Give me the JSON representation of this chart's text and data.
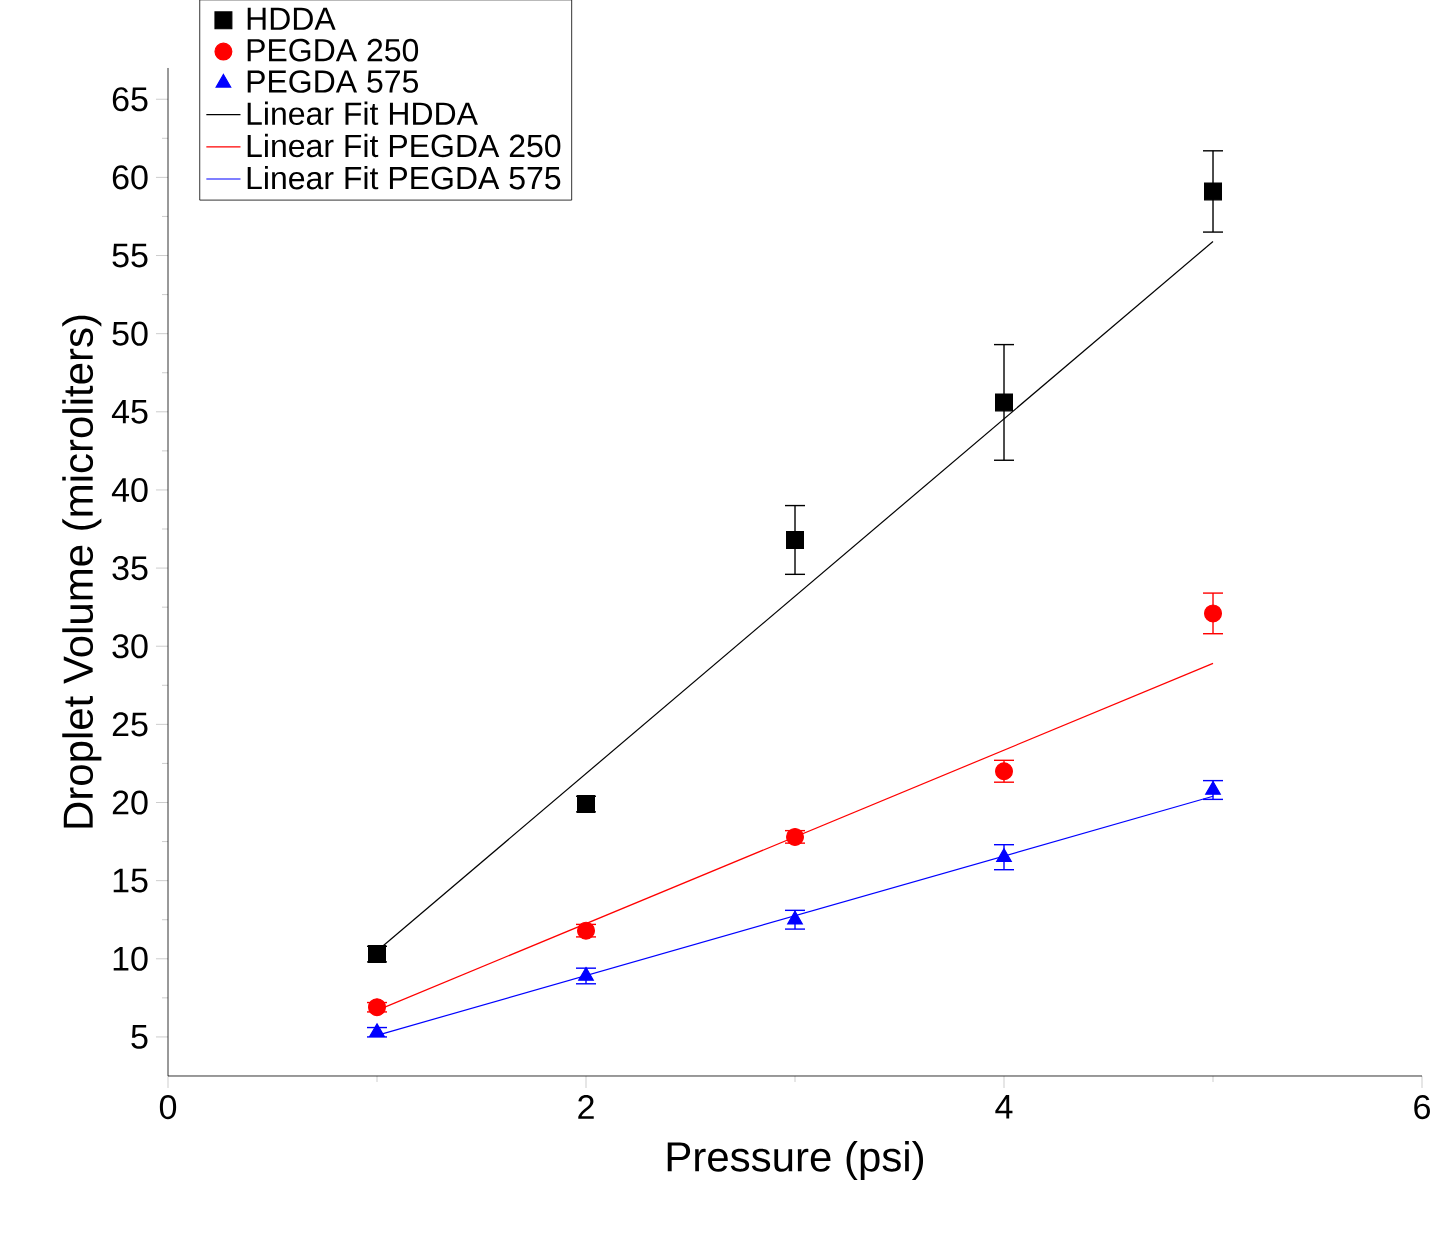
{
  "chart_data": {
    "type": "scatter",
    "xlabel": "Pressure (psi)",
    "ylabel": "Droplet Volume (microliters)",
    "xlim": [
      0,
      6
    ],
    "xticks": [
      0,
      2,
      4,
      6
    ],
    "ylim": [
      2.5,
      67
    ],
    "yticks": [
      5,
      10,
      15,
      20,
      25,
      30,
      35,
      40,
      45,
      50,
      55,
      60,
      65
    ],
    "grid": false,
    "legend": "top left",
    "series": [
      {
        "name": "HDDA",
        "marker": "square",
        "color": "#000000",
        "x": [
          1,
          2,
          3,
          4,
          5
        ],
        "values": [
          10.3,
          19.9,
          36.8,
          45.6,
          59.1
        ],
        "errors": [
          0.5,
          0.5,
          2.2,
          3.7,
          2.6
        ]
      },
      {
        "name": "PEGDA 250",
        "marker": "circle",
        "color": "#ff0000",
        "x": [
          1,
          2,
          3,
          4,
          5
        ],
        "values": [
          6.9,
          11.8,
          17.8,
          22.0,
          32.1
        ],
        "errors": [
          0.3,
          0.4,
          0.4,
          0.7,
          1.3
        ]
      },
      {
        "name": "PEGDA 575",
        "marker": "triangle",
        "color": "#0000ff",
        "x": [
          1,
          2,
          3,
          4,
          5
        ],
        "values": [
          5.3,
          8.9,
          12.5,
          16.5,
          20.8
        ],
        "errors": [
          0.3,
          0.5,
          0.6,
          0.8,
          0.6
        ]
      },
      {
        "name": "Linear Fit HDDA",
        "type": "line",
        "marker": "none",
        "color": "#000000",
        "x": [
          1,
          5
        ],
        "values": [
          10.5,
          55.9
        ]
      },
      {
        "name": "Linear Fit PEGDA 250",
        "type": "line",
        "marker": "none",
        "color": "#ff0000",
        "x": [
          1,
          5
        ],
        "values": [
          6.7,
          28.9
        ]
      },
      {
        "name": "Linear Fit PEGDA 575",
        "type": "line",
        "marker": "none",
        "color": "#0000ff",
        "x": [
          1,
          5
        ],
        "values": [
          5.1,
          20.4
        ]
      }
    ]
  }
}
